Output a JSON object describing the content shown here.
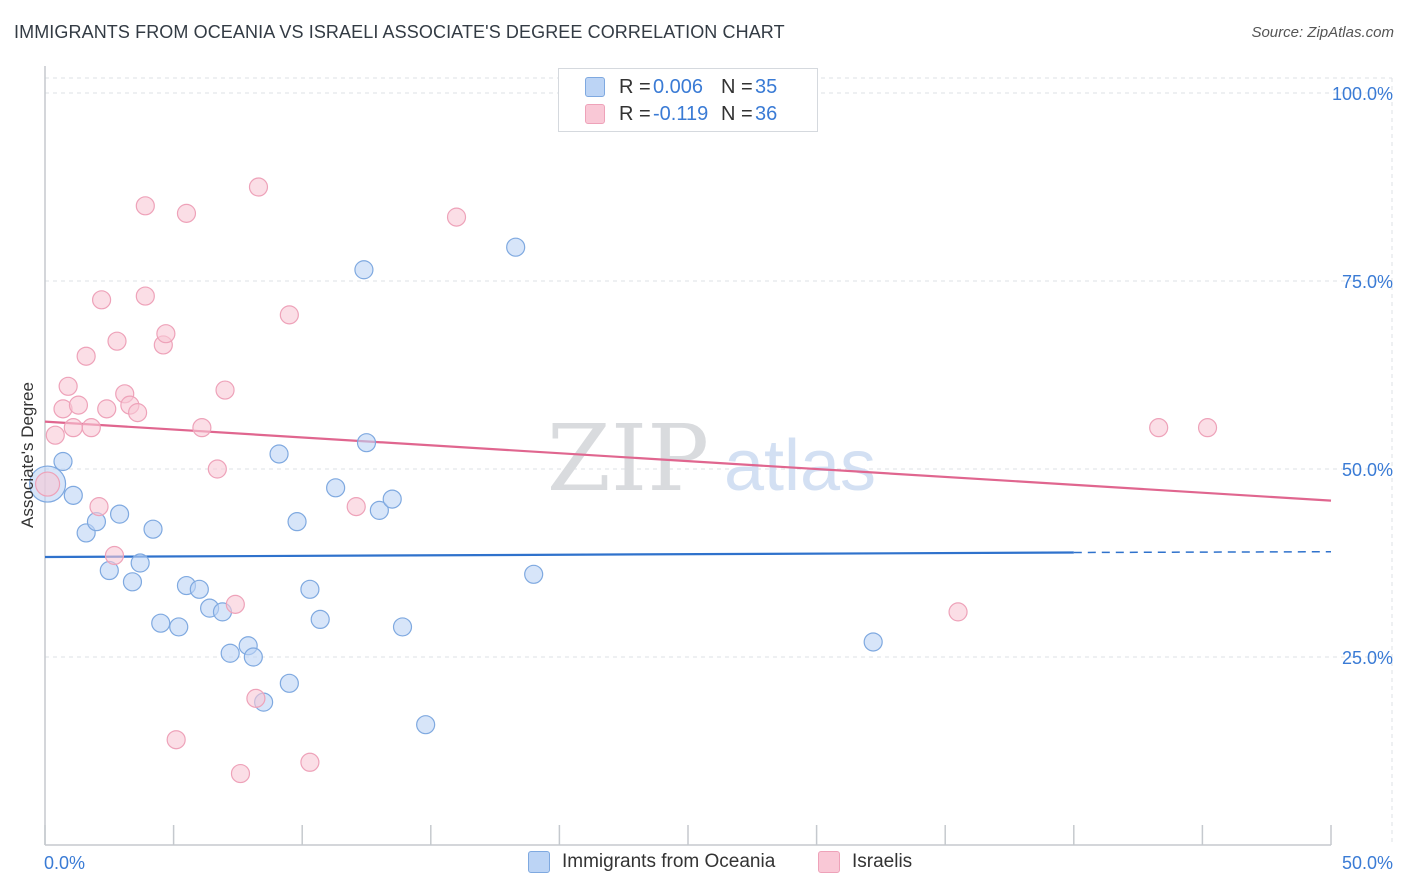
{
  "title": "IMMIGRANTS FROM OCEANIA VS ISRAELI ASSOCIATE'S DEGREE CORRELATION CHART",
  "source": "Source: ZipAtlas.com",
  "watermark": {
    "zip": "ZIP",
    "atlas": "atlas"
  },
  "legend": {
    "rows": [
      {
        "r_label": "R =",
        "r_value": "0.006",
        "n_label": "N =",
        "n_value": "35"
      },
      {
        "r_label": "R =",
        "r_value": "-0.119",
        "n_label": "N =",
        "n_value": "36"
      }
    ]
  },
  "colors": {
    "blue_fill": "#bcd4f5",
    "blue_stroke": "#7fa9e0",
    "blue_line": "#2f72cc",
    "pink_fill": "#f9c8d6",
    "pink_stroke": "#eea2b9",
    "pink_line": "#e0668f",
    "axis_text": "#3a7bd5",
    "grid": "#dde1e6"
  },
  "chart_data": {
    "type": "scatter",
    "title": "IMMIGRANTS FROM OCEANIA VS ISRAELI ASSOCIATE'S DEGREE CORRELATION CHART",
    "xlabel": "",
    "ylabel": "Associate's Degree",
    "xlim": [
      0,
      50
    ],
    "ylim": [
      0,
      102
    ],
    "x_ticks": [
      "0.0%",
      "50.0%"
    ],
    "y_ticks": [
      {
        "value": 100,
        "label": "100.0%"
      },
      {
        "value": 75,
        "label": "75.0%"
      },
      {
        "value": 50,
        "label": "50.0%"
      },
      {
        "value": 25,
        "label": "25.0%"
      }
    ],
    "grid": true,
    "legend_position": "top-center",
    "series": [
      {
        "name": "Immigrants from Oceania",
        "color": "blue",
        "trend": {
          "x": [
            0,
            40
          ],
          "y": [
            38.3,
            38.9
          ],
          "dashed_extension_to": 50,
          "dashed_y_end": 39.0
        },
        "points": [
          [
            0.1,
            48.0,
            18
          ],
          [
            0.7,
            51.0,
            9
          ],
          [
            1.1,
            46.5,
            9
          ],
          [
            1.6,
            41.5,
            9
          ],
          [
            2.0,
            43.0,
            9
          ],
          [
            2.5,
            36.5,
            9
          ],
          [
            2.9,
            44.0,
            9
          ],
          [
            3.4,
            35.0,
            9
          ],
          [
            3.7,
            37.5,
            9
          ],
          [
            4.2,
            42.0,
            9
          ],
          [
            4.5,
            29.5,
            9
          ],
          [
            5.2,
            29.0,
            9
          ],
          [
            5.5,
            34.5,
            9
          ],
          [
            6.0,
            34.0,
            9
          ],
          [
            6.4,
            31.5,
            9
          ],
          [
            6.9,
            31.0,
            9
          ],
          [
            7.2,
            25.5,
            9
          ],
          [
            7.9,
            26.5,
            9
          ],
          [
            8.1,
            25.0,
            9
          ],
          [
            8.5,
            19.0,
            9
          ],
          [
            9.1,
            52.0,
            9
          ],
          [
            9.5,
            21.5,
            9
          ],
          [
            9.8,
            43.0,
            9
          ],
          [
            10.3,
            34.0,
            9
          ],
          [
            10.7,
            30.0,
            9
          ],
          [
            11.3,
            47.5,
            9
          ],
          [
            12.4,
            76.5,
            9
          ],
          [
            12.5,
            53.5,
            9
          ],
          [
            13.0,
            44.5,
            9
          ],
          [
            13.5,
            46.0,
            9
          ],
          [
            13.9,
            29.0,
            9
          ],
          [
            14.8,
            16.0,
            9
          ],
          [
            18.3,
            79.5,
            9
          ],
          [
            19.0,
            36.0,
            9
          ],
          [
            32.2,
            27.0,
            9
          ]
        ]
      },
      {
        "name": "Israelis",
        "color": "pink",
        "trend": {
          "x": [
            0,
            50
          ],
          "y": [
            56.3,
            45.8
          ]
        },
        "points": [
          [
            0.1,
            48.0,
            12
          ],
          [
            0.4,
            54.5,
            9
          ],
          [
            0.7,
            58.0,
            9
          ],
          [
            0.9,
            61.0,
            9
          ],
          [
            1.1,
            55.5,
            9
          ],
          [
            1.3,
            58.5,
            9
          ],
          [
            1.6,
            65.0,
            9
          ],
          [
            1.8,
            55.5,
            9
          ],
          [
            2.1,
            45.0,
            9
          ],
          [
            2.2,
            72.5,
            9
          ],
          [
            2.4,
            58.0,
            9
          ],
          [
            2.7,
            38.5,
            9
          ],
          [
            2.8,
            67.0,
            9
          ],
          [
            3.1,
            60.0,
            9
          ],
          [
            3.3,
            58.5,
            9
          ],
          [
            3.6,
            57.5,
            9
          ],
          [
            3.9,
            85.0,
            9
          ],
          [
            3.9,
            73.0,
            9
          ],
          [
            4.6,
            66.5,
            9
          ],
          [
            4.7,
            68.0,
            9
          ],
          [
            5.1,
            14.0,
            9
          ],
          [
            5.5,
            84.0,
            9
          ],
          [
            6.1,
            55.5,
            9
          ],
          [
            6.7,
            50.0,
            9
          ],
          [
            7.0,
            60.5,
            9
          ],
          [
            7.4,
            32.0,
            9
          ],
          [
            7.6,
            9.5,
            9
          ],
          [
            8.2,
            19.5,
            9
          ],
          [
            8.3,
            87.5,
            9
          ],
          [
            9.5,
            70.5,
            9
          ],
          [
            10.3,
            11.0,
            9
          ],
          [
            12.1,
            45.0,
            9
          ],
          [
            16.0,
            83.5,
            9
          ],
          [
            35.5,
            31.0,
            9
          ],
          [
            43.3,
            55.5,
            9
          ],
          [
            45.2,
            55.5,
            9
          ]
        ]
      }
    ]
  },
  "bottom_legend": [
    {
      "label": "Immigrants from Oceania"
    },
    {
      "label": "Israelis"
    }
  ]
}
